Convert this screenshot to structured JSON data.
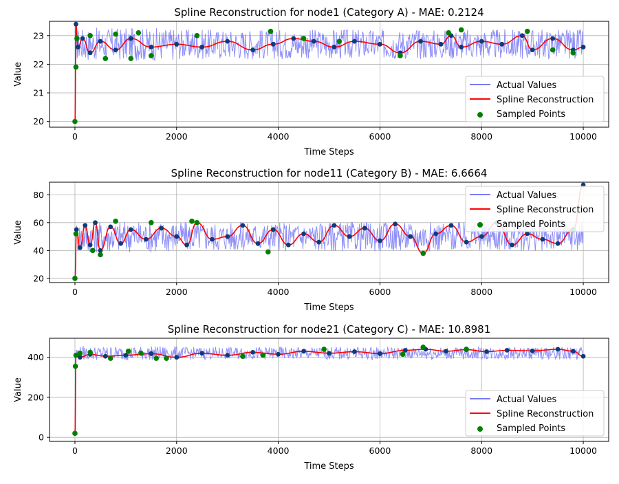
{
  "chart_data": [
    {
      "type": "line",
      "title": "Spline Reconstruction for node1 (Category A) - MAE: 0.2124",
      "xlabel": "Time Steps",
      "ylabel": "Value",
      "xlim": [
        -500,
        10500
      ],
      "ylim": [
        19.8,
        23.5
      ],
      "x_ticks": [
        0,
        2000,
        4000,
        6000,
        8000,
        10000
      ],
      "x_tick_labels": [
        "0",
        "2000",
        "4000",
        "6000",
        "8000",
        "10000"
      ],
      "y_ticks": [
        20,
        21,
        22,
        23
      ],
      "y_tick_labels": [
        "20",
        "21",
        "22",
        "23"
      ],
      "grid": true,
      "legend": "lower-right",
      "legend_entries": [
        "Actual Values",
        "Spline Reconstruction",
        "Sampled Points"
      ],
      "series": [
        {
          "kind": "band",
          "values": {
            "center": 22.7,
            "amplitude": 0.5,
            "start": 20.0
          }
        },
        {
          "kind": "spline",
          "x": [
            0,
            20,
            60,
            150,
            300,
            500,
            800,
            1100,
            1500,
            2000,
            2500,
            3000,
            3500,
            3900,
            4300,
            4700,
            5100,
            5500,
            6000,
            6400,
            6800,
            7200,
            7400,
            7600,
            8000,
            8400,
            8800,
            9000,
            9400,
            9800,
            10000
          ],
          "y": [
            20.0,
            23.4,
            22.6,
            22.9,
            22.4,
            22.8,
            22.5,
            22.9,
            22.6,
            22.7,
            22.6,
            22.8,
            22.5,
            22.7,
            22.9,
            22.8,
            22.6,
            22.8,
            22.7,
            22.4,
            22.8,
            22.7,
            23.0,
            22.6,
            22.8,
            22.7,
            23.0,
            22.5,
            22.9,
            22.5,
            22.6
          ]
        },
        {
          "kind": "samples",
          "x": [
            0,
            20,
            40,
            300,
            600,
            800,
            1100,
            1250,
            1500,
            2400,
            3850,
            4500,
            5200,
            6400,
            7350,
            7600,
            8900,
            9400,
            9800
          ],
          "y": [
            20.0,
            21.9,
            22.9,
            23.0,
            22.2,
            23.05,
            22.2,
            23.1,
            22.3,
            23.0,
            23.15,
            22.9,
            22.8,
            22.3,
            23.1,
            23.2,
            23.15,
            22.5,
            22.4
          ]
        }
      ]
    },
    {
      "type": "line",
      "title": "Spline Reconstruction for node11 (Category B) - MAE: 6.6664",
      "xlabel": "Time Steps",
      "ylabel": "Value",
      "xlim": [
        -500,
        10500
      ],
      "ylim": [
        17,
        89
      ],
      "x_ticks": [
        0,
        2000,
        4000,
        6000,
        8000,
        10000
      ],
      "x_tick_labels": [
        "0",
        "2000",
        "4000",
        "6000",
        "8000",
        "10000"
      ],
      "y_ticks": [
        20,
        40,
        60,
        80
      ],
      "y_tick_labels": [
        "20",
        "40",
        "60",
        "80"
      ],
      "grid": true,
      "legend": "top-right",
      "legend_entries": [
        "Actual Values",
        "Spline Reconstruction",
        "Sampled Points"
      ],
      "series": [
        {
          "kind": "band",
          "values": {
            "center": 50,
            "amplitude": 10,
            "start": 20
          }
        },
        {
          "kind": "spline",
          "x": [
            0,
            30,
            100,
            200,
            300,
            400,
            500,
            700,
            900,
            1100,
            1400,
            1700,
            2000,
            2200,
            2400,
            2700,
            3000,
            3300,
            3600,
            3900,
            4200,
            4500,
            4800,
            5100,
            5400,
            5700,
            6000,
            6300,
            6600,
            6850,
            7100,
            7400,
            7700,
            8000,
            8300,
            8600,
            8900,
            9200,
            9500,
            9800,
            10000
          ],
          "y": [
            20,
            55,
            42,
            58,
            44,
            60,
            40,
            57,
            45,
            55,
            48,
            56,
            50,
            44,
            60,
            48,
            50,
            58,
            45,
            55,
            44,
            52,
            46,
            58,
            50,
            56,
            47,
            59,
            50,
            38,
            52,
            58,
            46,
            50,
            60,
            44,
            52,
            48,
            45,
            55,
            87
          ]
        },
        {
          "kind": "samples",
          "x": [
            0,
            20,
            350,
            500,
            800,
            1500,
            2300,
            2400,
            3800,
            6850,
            9800
          ],
          "y": [
            20,
            52,
            40,
            37,
            61,
            60,
            61,
            60,
            39,
            38,
            55
          ]
        }
      ]
    },
    {
      "type": "line",
      "title": "Spline Reconstruction for node21 (Category C) - MAE: 10.8981",
      "xlabel": "Time Steps",
      "ylabel": "Value",
      "xlim": [
        -500,
        10500
      ],
      "ylim": [
        -20,
        495
      ],
      "x_ticks": [
        0,
        2000,
        4000,
        6000,
        8000,
        10000
      ],
      "x_tick_labels": [
        "0",
        "2000",
        "4000",
        "6000",
        "8000",
        "10000"
      ],
      "y_ticks": [
        0,
        200,
        400
      ],
      "y_tick_labels": [
        "0",
        "200",
        "400"
      ],
      "grid": true,
      "legend": "lower-right",
      "legend_entries": [
        "Actual Values",
        "Spline Reconstruction",
        "Sampled Points"
      ],
      "series": [
        {
          "kind": "band",
          "values": {
            "center": 420,
            "amplitude": 30,
            "start": 20
          }
        },
        {
          "kind": "spline",
          "x": [
            0,
            20,
            100,
            300,
            600,
            1000,
            1500,
            2000,
            2500,
            3000,
            3500,
            4000,
            4500,
            5000,
            5500,
            6000,
            6500,
            6900,
            7300,
            7700,
            8100,
            8500,
            9000,
            9500,
            9800,
            10000
          ],
          "y": [
            20,
            410,
            400,
            415,
            405,
            410,
            418,
            400,
            420,
            410,
            425,
            415,
            430,
            420,
            428,
            418,
            435,
            440,
            430,
            438,
            428,
            435,
            432,
            440,
            430,
            405
          ]
        },
        {
          "kind": "samples",
          "x": [
            0,
            10,
            20,
            100,
            300,
            700,
            1050,
            1300,
            1600,
            1800,
            3300,
            3700,
            4900,
            6450,
            6850,
            7700
          ],
          "y": [
            20,
            355,
            410,
            420,
            425,
            395,
            430,
            420,
            395,
            395,
            405,
            410,
            440,
            415,
            450,
            440
          ]
        }
      ]
    }
  ]
}
